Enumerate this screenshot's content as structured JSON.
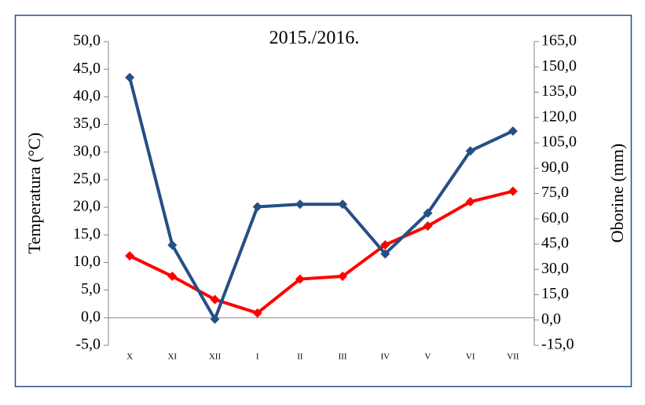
{
  "chart_data": {
    "type": "line",
    "title": "2015./2016.",
    "y_label": "Temperatura (°C)",
    "y2_label": "Oborine (mm)",
    "categories": [
      "X",
      "XI",
      "XII",
      "I",
      "II",
      "III",
      "IV",
      "V",
      "VI",
      "VII"
    ],
    "series": [
      {
        "color": "#ff0000",
        "values": [
          11.2,
          7.5,
          3.3,
          0.85,
          7.0,
          7.5,
          13.2,
          16.6,
          21.0,
          22.9
        ]
      },
      {
        "color": "#254f85",
        "axis": "y2",
        "values": [
          143.7,
          44.4,
          0.5,
          67.1,
          68.6,
          68.6,
          39.2,
          63.4,
          100.2,
          112.0
        ]
      }
    ],
    "ylim": [
      -5,
      50
    ],
    "yticks": [
      {
        "value": -5,
        "label": "-5,0"
      },
      {
        "value": 0,
        "label": "0,0"
      },
      {
        "value": 5,
        "label": "5,0"
      },
      {
        "value": 10,
        "label": "10,0"
      },
      {
        "value": 15,
        "label": "15,0"
      },
      {
        "value": 20,
        "label": "20,0"
      },
      {
        "value": 25,
        "label": "25,0"
      },
      {
        "value": 30,
        "label": "30,0"
      },
      {
        "value": 35,
        "label": "35,0"
      },
      {
        "value": 40,
        "label": "40,0"
      },
      {
        "value": 45,
        "label": "45,0"
      },
      {
        "value": 50,
        "label": "50,0"
      }
    ],
    "y2lim": [
      -15,
      165
    ],
    "y2ticks": [
      {
        "value": -15,
        "label": "-15,0"
      },
      {
        "value": 0,
        "label": "0,0"
      },
      {
        "value": 15,
        "label": "15,0"
      },
      {
        "value": 30,
        "label": "30,0"
      },
      {
        "value": 45,
        "label": "45,0"
      },
      {
        "value": 60,
        "label": "60,0"
      },
      {
        "value": 75,
        "label": "75,0"
      },
      {
        "value": 90,
        "label": "90,0"
      },
      {
        "value": 105,
        "label": "105,0"
      },
      {
        "value": 120,
        "label": "120,0"
      },
      {
        "value": 135,
        "label": "135,0"
      },
      {
        "value": 150,
        "label": "150,0"
      },
      {
        "value": 165,
        "label": "165,0"
      }
    ],
    "grid": false
  }
}
